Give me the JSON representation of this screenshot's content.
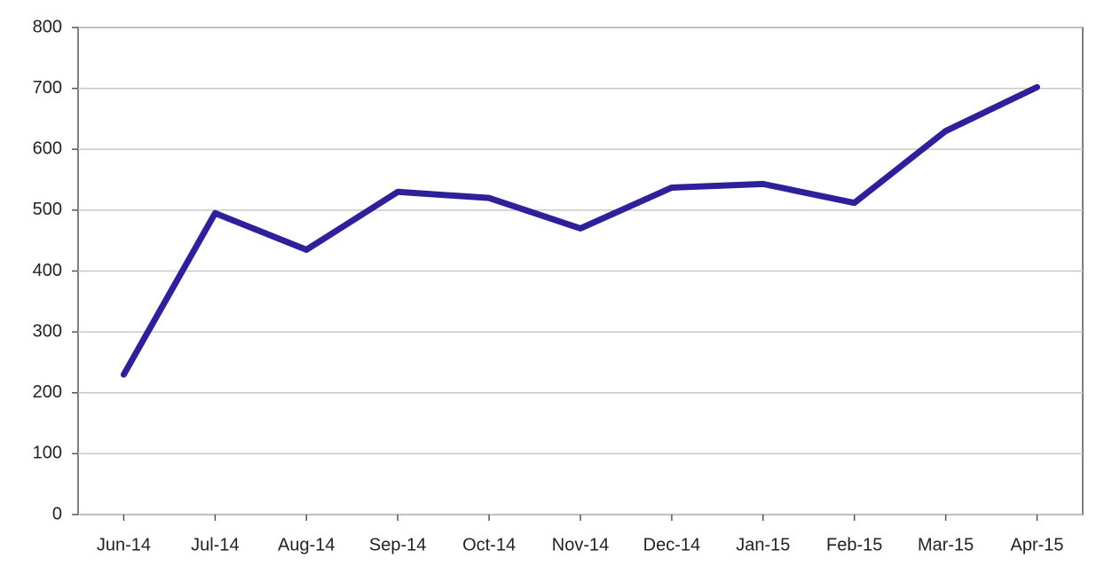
{
  "chart_data": {
    "type": "line",
    "categories": [
      "Jun-14",
      "Jul-14",
      "Aug-14",
      "Sep-14",
      "Oct-14",
      "Nov-14",
      "Dec-14",
      "Jan-15",
      "Feb-15",
      "Mar-15",
      "Apr-15"
    ],
    "values": [
      230,
      495,
      435,
      530,
      520,
      470,
      537,
      543,
      512,
      630,
      702
    ],
    "color": "#2e1f9a",
    "ylim": [
      0,
      800
    ],
    "yticks": [
      0,
      100,
      200,
      300,
      400,
      500,
      600,
      700,
      800
    ],
    "grid": true
  }
}
